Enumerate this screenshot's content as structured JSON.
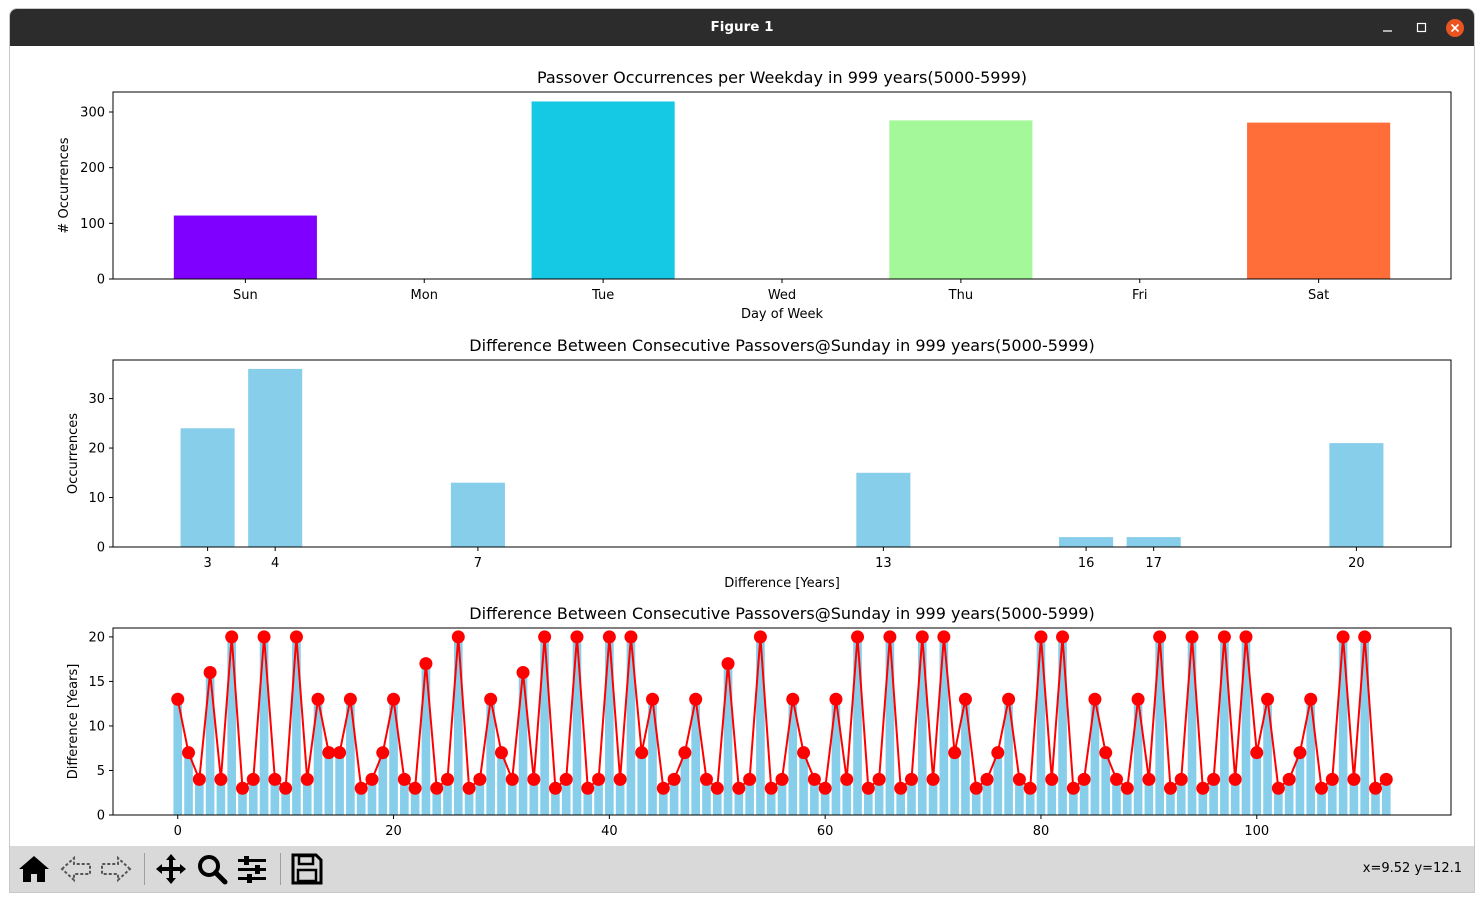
{
  "window": {
    "title": "Figure 1"
  },
  "toolbar": {
    "coords": "x=9.52 y=12.1",
    "buttons": [
      "home-icon",
      "back-icon",
      "forward-icon",
      "pan-icon",
      "zoom-icon",
      "configure-icon",
      "save-icon"
    ]
  },
  "chart_data": [
    {
      "type": "bar",
      "title": "Passover Occurrences per Weekday in 999 years(5000-5999)",
      "xlabel": "Day of Week",
      "ylabel": "# Occurrences",
      "categories": [
        "Sun",
        "Mon",
        "Tue",
        "Wed",
        "Thu",
        "Fri",
        "Sat"
      ],
      "values": [
        114,
        0,
        319,
        0,
        285,
        0,
        281
      ],
      "colors": [
        "#8000ff",
        "#2a54f8",
        "#15c9e5",
        "#4cf2ce",
        "#a4f89a",
        "#ffb160",
        "#ff6e38"
      ],
      "ylim": [
        0,
        336
      ],
      "yticks": [
        0,
        100,
        200,
        300
      ]
    },
    {
      "type": "bar",
      "title": "Difference Between Consecutive Passovers@Sunday in 999 years(5000-5999)",
      "xlabel": "Difference [Years]",
      "ylabel": "Occurrences",
      "x": [
        3,
        4,
        7,
        13,
        16,
        17,
        20
      ],
      "values": [
        24,
        36,
        13,
        15,
        2,
        2,
        21
      ],
      "color": "#87ceeb",
      "xlim": [
        1.6,
        21.4
      ],
      "ylim": [
        0,
        37.8
      ],
      "yticks": [
        0,
        10,
        20,
        30
      ]
    },
    {
      "type": "bar",
      "title": "Difference Between Consecutive Passovers@Sunday in 999 years(5000-5999)",
      "xlabel": "",
      "ylabel": "Difference [Years]",
      "line_color": "#ff0000",
      "bar_color": "#87ceeb",
      "xlim": [
        -6,
        118
      ],
      "ylim": [
        0,
        21
      ],
      "xticks": [
        0,
        20,
        40,
        60,
        80,
        100
      ],
      "yticks": [
        0,
        5,
        10,
        15,
        20
      ],
      "values": [
        13,
        7,
        4,
        16,
        4,
        20,
        3,
        4,
        20,
        4,
        3,
        20,
        4,
        13,
        7,
        7,
        13,
        3,
        4,
        7,
        13,
        4,
        3,
        17,
        3,
        4,
        20,
        3,
        4,
        13,
        7,
        4,
        16,
        4,
        20,
        3,
        4,
        20,
        3,
        4,
        20,
        4,
        20,
        7,
        13,
        3,
        4,
        7,
        13,
        4,
        3,
        17,
        3,
        4,
        20,
        3,
        4,
        13,
        7,
        4,
        3,
        13,
        4,
        20,
        3,
        4,
        20,
        3,
        4,
        20,
        4,
        20,
        7,
        13,
        3,
        4,
        7,
        13,
        4,
        3,
        20,
        4,
        20,
        3,
        4,
        13,
        7,
        4,
        3,
        13,
        4,
        20,
        3,
        4,
        20,
        3,
        4,
        20,
        4,
        20,
        7,
        13,
        3,
        4,
        7,
        13,
        3,
        4,
        20,
        4,
        20,
        3,
        4
      ]
    }
  ]
}
